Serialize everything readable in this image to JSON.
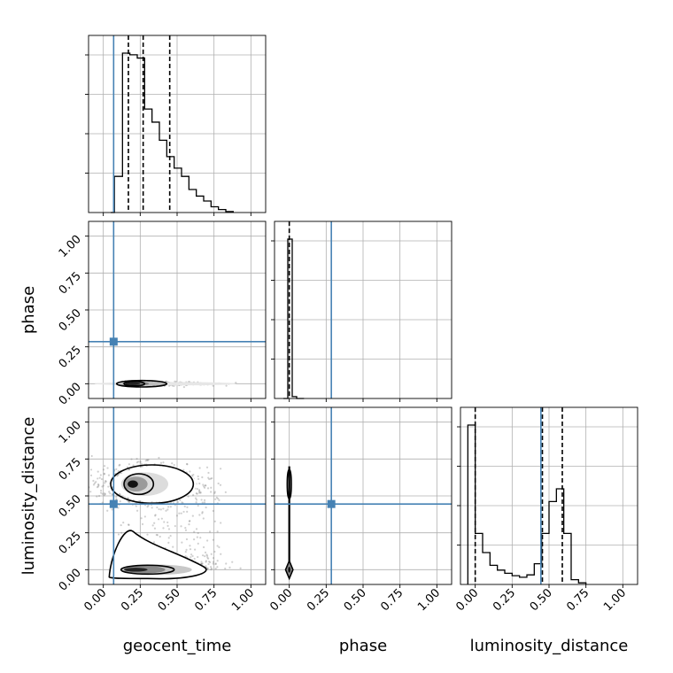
{
  "chart_data": {
    "type": "corner",
    "parameters": [
      "geocent_time",
      "phase",
      "luminosity_distance"
    ],
    "axis_labels": {
      "x": [
        "geocent_time",
        "phase",
        "luminosity_distance"
      ],
      "y": [
        "phase",
        "luminosity_distance"
      ]
    },
    "tick_values": [
      0.0,
      0.25,
      0.5,
      0.75,
      1.0
    ],
    "tick_labels": [
      "0.00",
      "0.25",
      "0.50",
      "0.75",
      "1.00"
    ],
    "axis_range": [
      -0.1,
      1.1
    ],
    "grid": true,
    "colors": {
      "truth": "#4682b4",
      "hist": "#000000",
      "quantile": "#000000"
    },
    "truths": {
      "geocent_time": 0.07,
      "phase": 0.285,
      "luminosity_distance": 0.445
    },
    "diagonal": [
      {
        "parameter": "geocent_time",
        "bins": [
          [
            0.05,
            0.075
          ],
          [
            0.075,
            0.13
          ],
          [
            0.13,
            0.18
          ],
          [
            0.18,
            0.23
          ],
          [
            0.23,
            0.28
          ],
          [
            0.28,
            0.33
          ],
          [
            0.33,
            0.38
          ],
          [
            0.38,
            0.43
          ],
          [
            0.43,
            0.48
          ],
          [
            0.48,
            0.53
          ],
          [
            0.53,
            0.58
          ],
          [
            0.58,
            0.63
          ],
          [
            0.63,
            0.68
          ],
          [
            0.68,
            0.73
          ],
          [
            0.73,
            0.78
          ],
          [
            0.78,
            0.83
          ],
          [
            0.83,
            0.88
          ]
        ],
        "counts": [
          0,
          0.22,
          0.97,
          0.96,
          0.94,
          0.63,
          0.55,
          0.44,
          0.34,
          0.27,
          0.22,
          0.14,
          0.1,
          0.07,
          0.035,
          0.018,
          0.006
        ],
        "quantiles": [
          0.17,
          0.27,
          0.45
        ]
      },
      {
        "parameter": "phase",
        "bins": [
          [
            -0.04,
            -0.01
          ],
          [
            -0.01,
            0.02
          ],
          [
            0.02,
            0.05
          ],
          [
            0.05,
            0.1
          ]
        ],
        "counts": [
          0,
          1.0,
          0.012,
          0.0
        ],
        "quantiles": [
          0.0
        ]
      },
      {
        "parameter": "luminosity_distance",
        "bins": [
          [
            -0.05,
            0.0
          ],
          [
            0.0,
            0.05
          ],
          [
            0.05,
            0.1
          ],
          [
            0.1,
            0.15
          ],
          [
            0.15,
            0.2
          ],
          [
            0.2,
            0.25
          ],
          [
            0.25,
            0.3
          ],
          [
            0.3,
            0.35
          ],
          [
            0.35,
            0.4
          ],
          [
            0.4,
            0.45
          ],
          [
            0.45,
            0.5
          ],
          [
            0.5,
            0.55
          ],
          [
            0.55,
            0.6
          ],
          [
            0.6,
            0.65
          ],
          [
            0.65,
            0.7
          ],
          [
            0.7,
            0.75
          ]
        ],
        "counts": [
          1.0,
          0.32,
          0.2,
          0.12,
          0.09,
          0.07,
          0.055,
          0.045,
          0.06,
          0.13,
          0.32,
          0.52,
          0.6,
          0.32,
          0.03,
          0.01
        ],
        "quantiles": [
          0.0,
          0.455,
          0.59
        ]
      }
    ],
    "off_diagonal": [
      {
        "x": "geocent_time",
        "y": "phase",
        "scatter_region": {
          "x": [
            0.12,
            0.9
          ],
          "y": [
            -0.01,
            0.02
          ]
        },
        "density_peak": [
          0.2,
          0.0
        ]
      },
      {
        "x": "geocent_time",
        "y": "luminosity_distance",
        "modes": [
          {
            "center": [
              0.2,
              0.58
            ],
            "spread": [
              0.08,
              0.05
            ]
          },
          {
            "center": [
              0.25,
              0.0
            ],
            "spread": [
              0.15,
              0.025
            ]
          }
        ],
        "scatter_region": {
          "x": [
            0.05,
            0.95
          ],
          "y": [
            -0.05,
            0.75
          ]
        }
      },
      {
        "x": "phase",
        "y": "luminosity_distance",
        "modes": [
          {
            "center": [
              0.0,
              0.58
            ],
            "spread": [
              0.01,
              0.06
            ]
          },
          {
            "center": [
              0.0,
              0.0
            ],
            "spread": [
              0.012,
              0.025
            ]
          }
        ]
      }
    ]
  }
}
